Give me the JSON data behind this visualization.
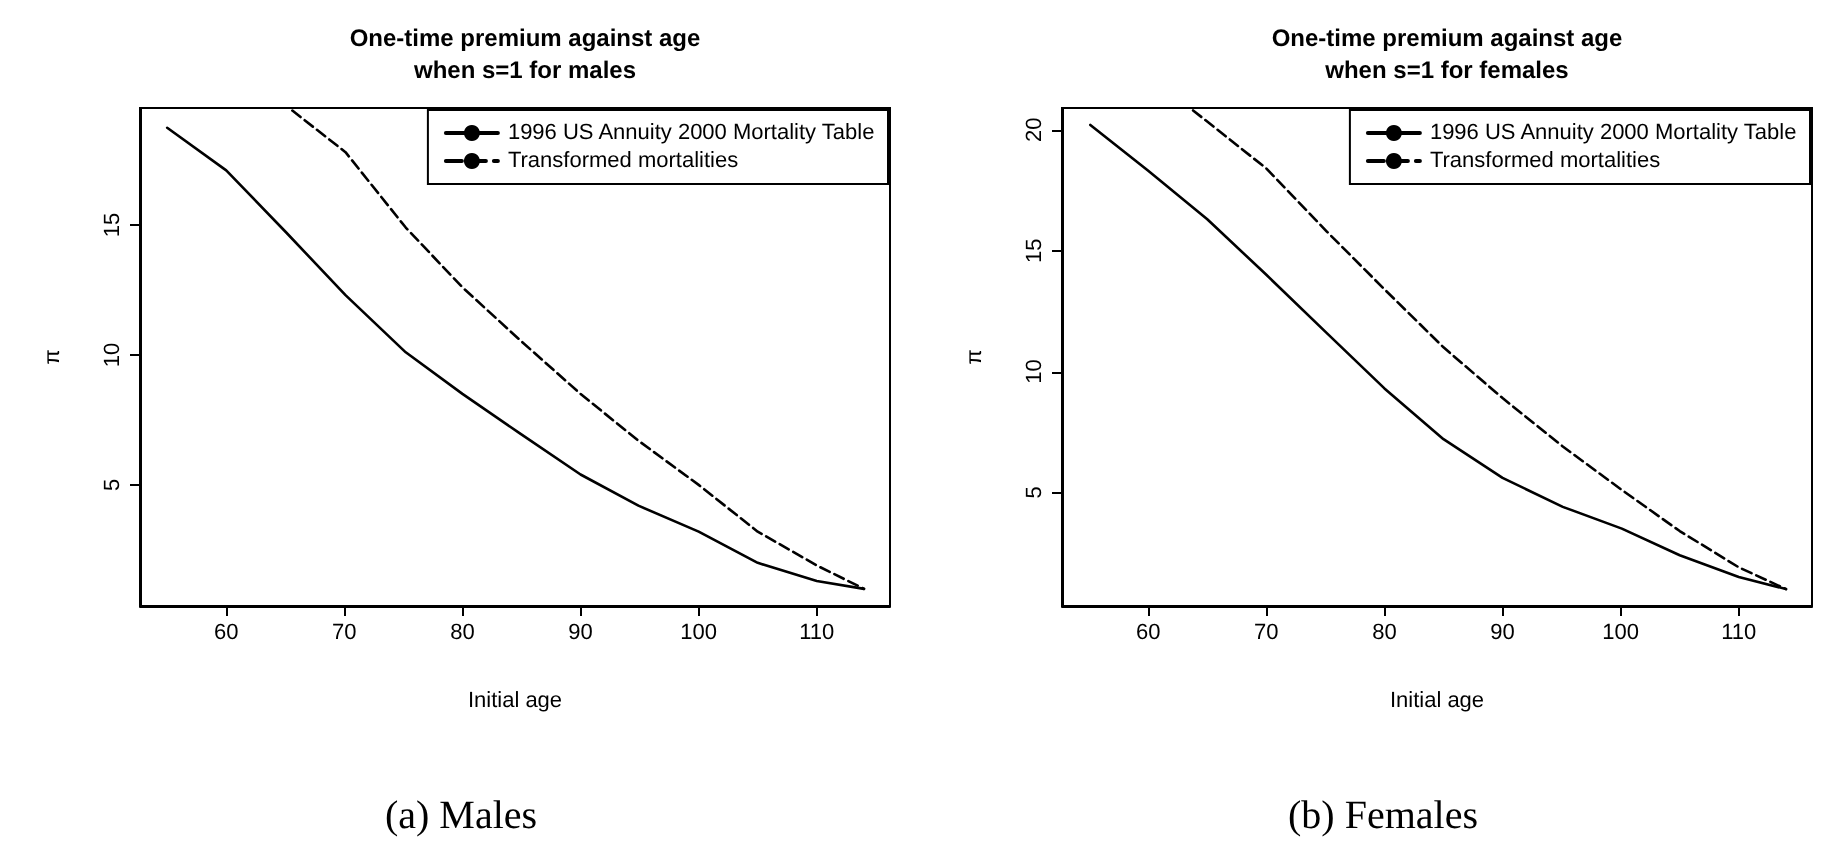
{
  "chart_data": [
    {
      "type": "line",
      "title": "One-time premium against age\nwhen s=1 for males",
      "xlabel": "Initial age",
      "ylabel": "π",
      "annotations": [
        "(a) Males"
      ],
      "xlim": [
        52.7,
        116.2
      ],
      "xticks": [
        60,
        70,
        80,
        90,
        100,
        110
      ],
      "ylim": [
        0.34,
        19.5
      ],
      "yticks": [
        5,
        10,
        15
      ],
      "grid": false,
      "legend": "top right",
      "marker": "none",
      "series": [
        {
          "name": "1996 US Annuity 2000 Mortality Table",
          "color": "#000000",
          "line_style": "solid",
          "x": [
            55,
            60,
            65.1,
            70.1,
            75.2,
            80,
            84.8,
            90,
            94.9,
            100,
            105,
            110,
            114
          ],
          "values": [
            18.74,
            17.1,
            14.7,
            12.3,
            10.1,
            8.5,
            7.0,
            5.4,
            4.2,
            3.2,
            2.0,
            1.3,
            1.0
          ]
        },
        {
          "name": "Transformed mortalities",
          "color": "#000000",
          "line_style": "dashed",
          "x": [
            65.6,
            70.1,
            75.2,
            80,
            84.8,
            90,
            94.9,
            100,
            105,
            110,
            114
          ],
          "values": [
            19.4,
            17.8,
            14.9,
            12.6,
            10.6,
            8.5,
            6.7,
            5.0,
            3.2,
            1.9,
            1.0
          ]
        }
      ]
    },
    {
      "type": "line",
      "title": "One-time premium against age\nwhen s=1 for females",
      "xlabel": "Initial age",
      "ylabel": "π",
      "annotations": [
        "(b) Females"
      ],
      "xlim": [
        52.7,
        116.2
      ],
      "xticks": [
        60,
        70,
        80,
        90,
        100,
        110
      ],
      "ylim": [
        0.3,
        20.9
      ],
      "yticks": [
        5,
        10,
        15,
        20
      ],
      "grid": false,
      "legend": "top right",
      "marker": "none",
      "series": [
        {
          "name": "1996 US Annuity 2000 Mortality Table",
          "color": "#000000",
          "line_style": "solid",
          "x": [
            55.1,
            60,
            65,
            70,
            75.1,
            80,
            85,
            90,
            95.1,
            100.1,
            105,
            110,
            114
          ],
          "values": [
            20.2,
            18.3,
            16.3,
            14.0,
            11.6,
            9.3,
            7.2,
            5.6,
            4.4,
            3.5,
            2.4,
            1.5,
            1.0
          ]
        },
        {
          "name": "Transformed mortalities",
          "color": "#000000",
          "line_style": "dashed",
          "x": [
            63.8,
            70,
            75.1,
            80,
            85,
            90,
            95.1,
            100.1,
            105,
            110,
            114
          ],
          "values": [
            20.8,
            18.4,
            15.8,
            13.4,
            11.0,
            8.9,
            6.9,
            5.1,
            3.4,
            1.9,
            1.0
          ]
        }
      ]
    }
  ]
}
